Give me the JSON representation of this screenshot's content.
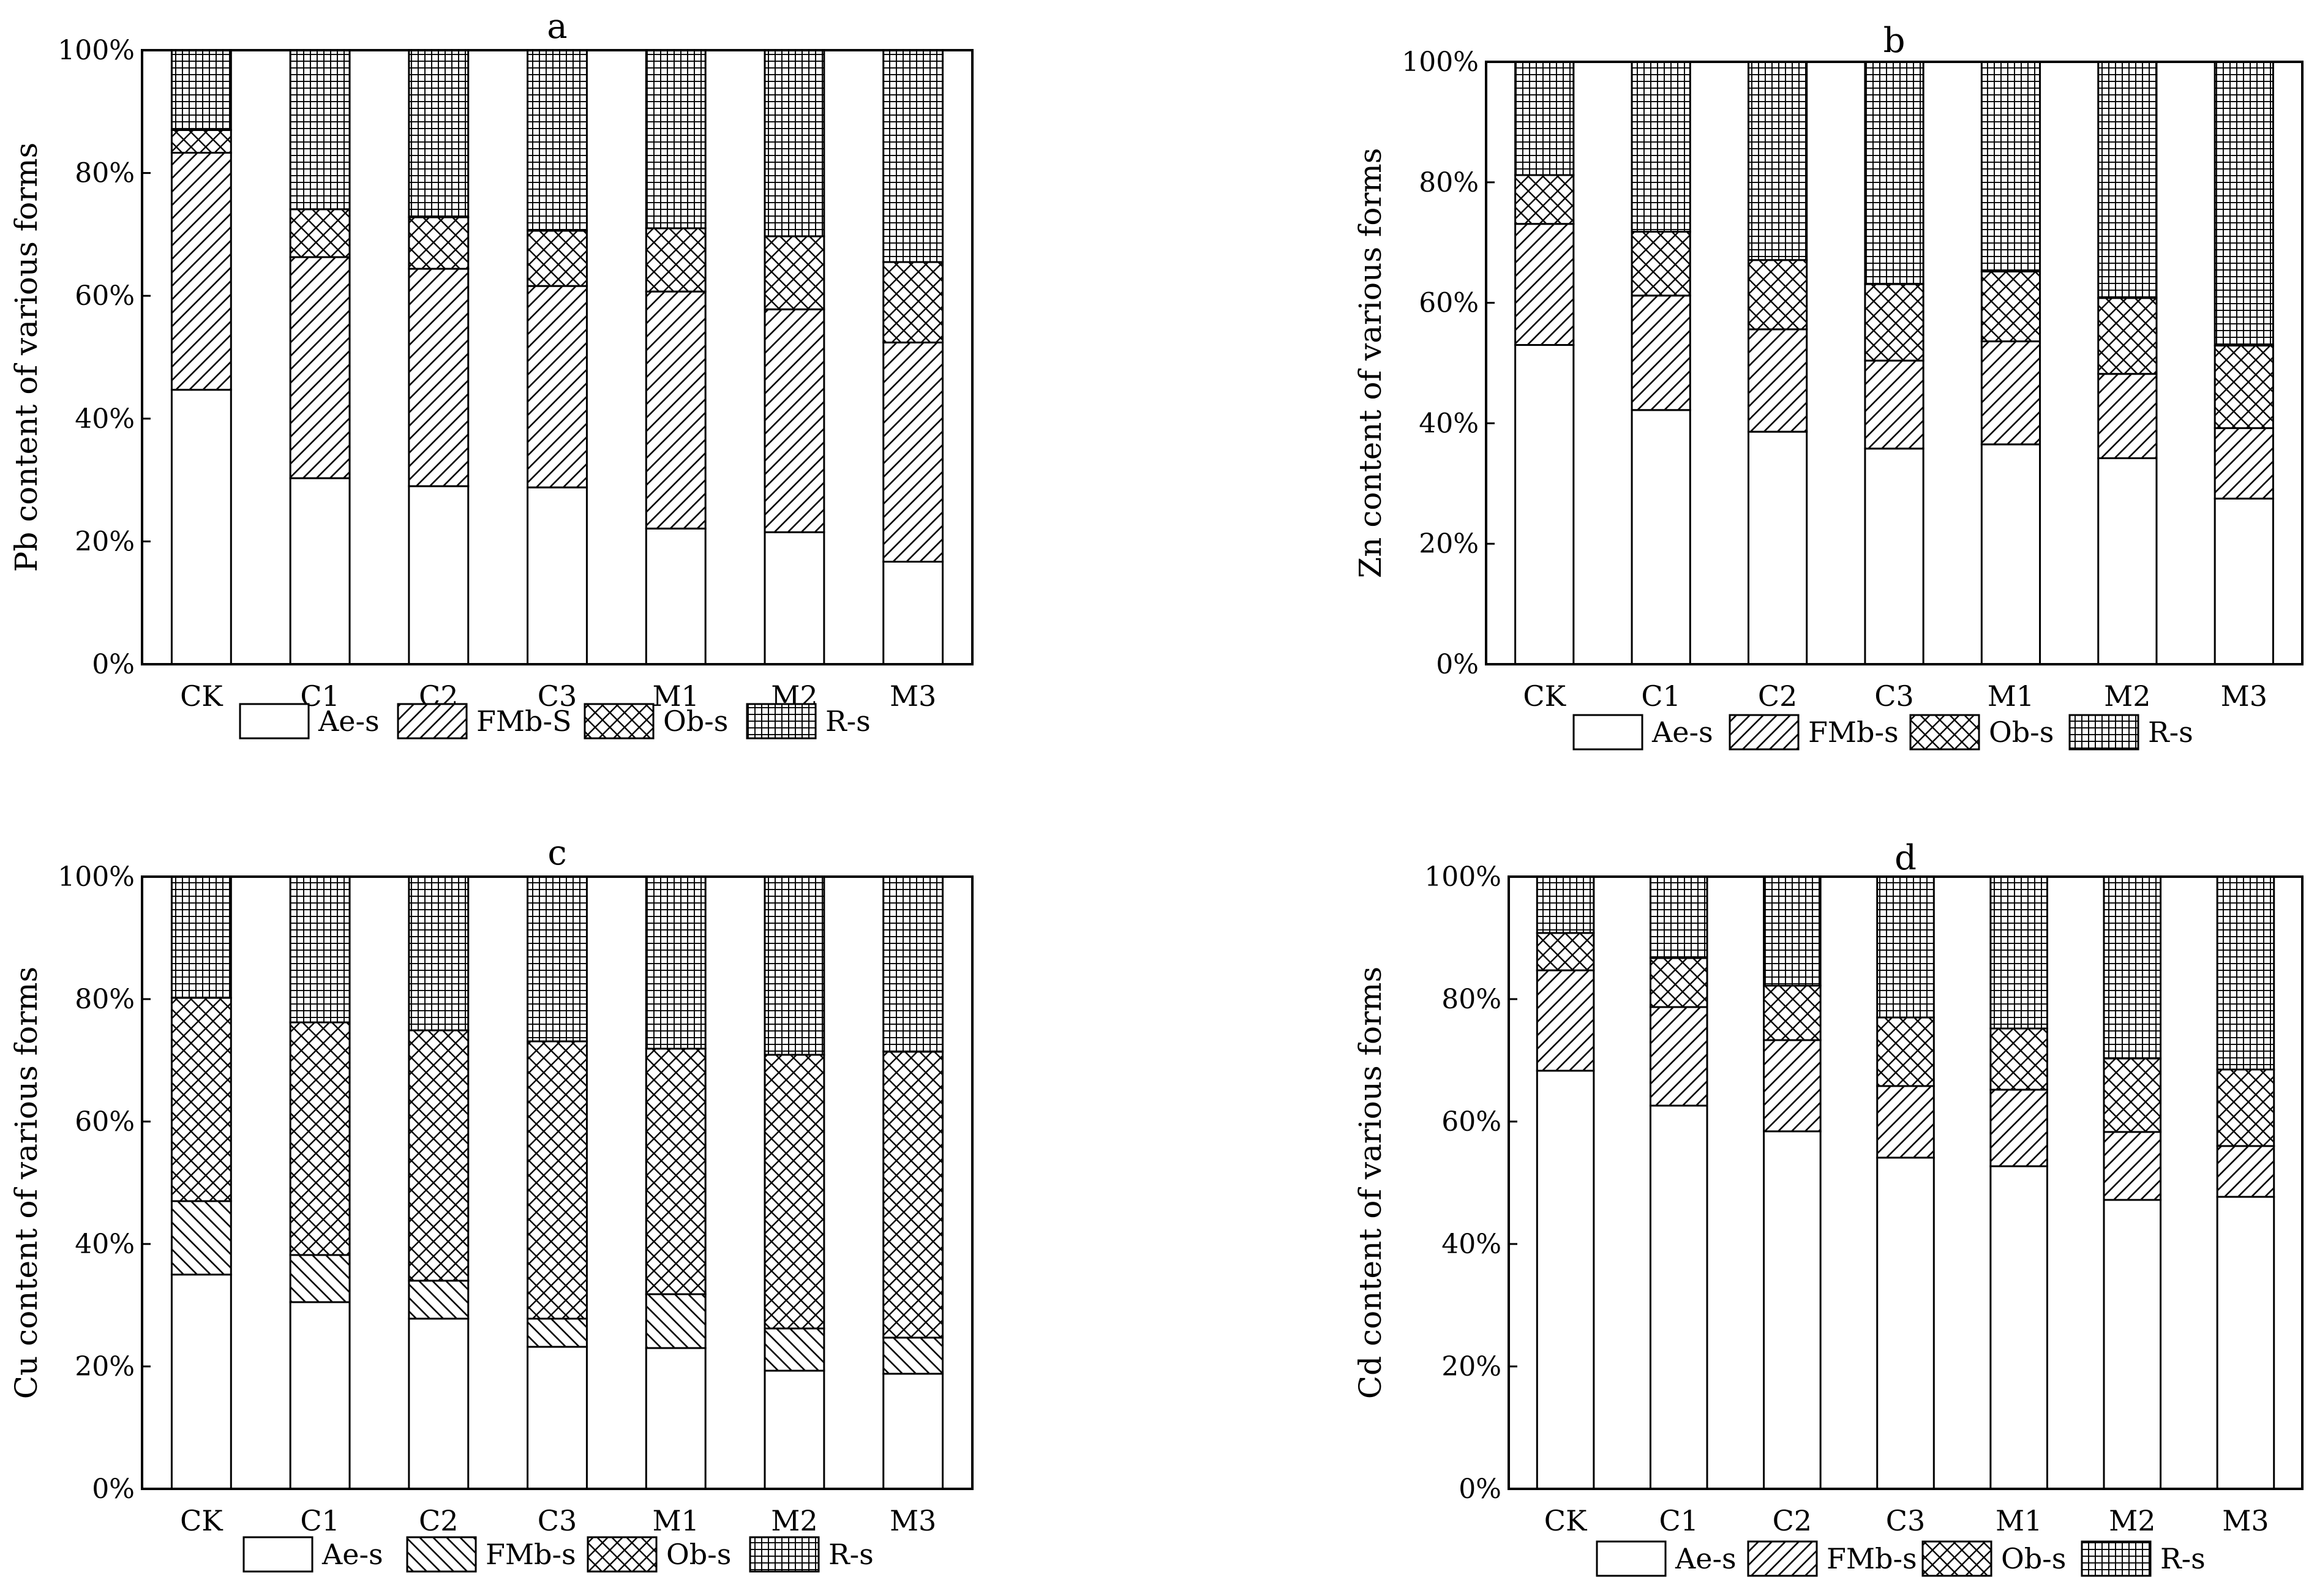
{
  "chart_data": [
    {
      "panel": "a",
      "type": "bar",
      "stacked": true,
      "title": "a",
      "ylabel": "Pb content of various forms",
      "xlabel": "",
      "ylim": [
        0,
        100
      ],
      "yticks": [
        "0%",
        "20%",
        "40%",
        "60%",
        "80%",
        "100%"
      ],
      "categories": [
        "CK",
        "C1",
        "C2",
        "C3",
        "M1",
        "M2",
        "M3"
      ],
      "legend": [
        "Ae-s",
        "FMb-S",
        "Ob-s",
        "R-s"
      ],
      "series": [
        {
          "name": "Ae-s",
          "values": [
            44.7,
            30.3,
            29.0,
            28.8,
            22.1,
            21.5,
            16.7
          ]
        },
        {
          "name": "FMb-S",
          "values": [
            38.6,
            36.0,
            35.4,
            32.8,
            38.6,
            36.3,
            35.7
          ]
        },
        {
          "name": "Ob-s",
          "values": [
            3.7,
            7.8,
            8.4,
            9.0,
            10.3,
            11.9,
            13.1
          ]
        },
        {
          "name": "R-s",
          "values": [
            13.0,
            25.9,
            27.2,
            29.4,
            29.0,
            30.3,
            34.5
          ]
        }
      ]
    },
    {
      "panel": "b",
      "type": "bar",
      "stacked": true,
      "title": "b",
      "ylabel": "Zn content of various forms",
      "xlabel": "",
      "ylim": [
        0,
        100
      ],
      "yticks": [
        "0%",
        "20%",
        "40%",
        "60%",
        "80%",
        "100%"
      ],
      "categories": [
        "CK",
        "C1",
        "C2",
        "C3",
        "M1",
        "M2",
        "M3"
      ],
      "legend": [
        "Ae-s",
        "FMb-s",
        "Ob-s",
        "R-s"
      ],
      "series": [
        {
          "name": "Ae-s",
          "values": [
            53.0,
            42.2,
            38.6,
            35.8,
            36.5,
            34.2,
            27.5
          ]
        },
        {
          "name": "FMb-s",
          "values": [
            20.1,
            19.0,
            17.0,
            14.6,
            17.1,
            14.0,
            11.7
          ]
        },
        {
          "name": "Ob-s",
          "values": [
            8.1,
            10.6,
            11.5,
            12.7,
            11.6,
            12.6,
            13.7
          ]
        },
        {
          "name": "R-s",
          "values": [
            18.8,
            28.2,
            32.9,
            36.9,
            34.8,
            39.2,
            47.1
          ]
        }
      ]
    },
    {
      "panel": "c",
      "type": "bar",
      "stacked": true,
      "title": "c",
      "ylabel": "Cu content of various forms",
      "xlabel": "",
      "ylim": [
        0,
        100
      ],
      "yticks": [
        "0%",
        "20%",
        "40%",
        "60%",
        "80%",
        "100%"
      ],
      "categories": [
        "CK",
        "C1",
        "C2",
        "C3",
        "M1",
        "M2",
        "M3"
      ],
      "legend": [
        "Ae-s",
        "FMb-s",
        "Ob-s",
        "R-s"
      ],
      "series": [
        {
          "name": "Ae-s",
          "values": [
            35.0,
            30.5,
            27.8,
            23.2,
            23.0,
            19.3,
            18.8
          ]
        },
        {
          "name": "FMb-s",
          "values": [
            12.0,
            7.7,
            6.2,
            4.6,
            8.8,
            6.9,
            5.9
          ]
        },
        {
          "name": "Ob-s",
          "values": [
            33.2,
            38.0,
            40.9,
            45.3,
            40.1,
            44.7,
            46.7
          ]
        },
        {
          "name": "R-s",
          "values": [
            19.8,
            23.8,
            25.1,
            26.9,
            28.1,
            29.1,
            28.6
          ]
        }
      ]
    },
    {
      "panel": "d",
      "type": "bar",
      "stacked": true,
      "title": "d",
      "ylabel": "Cd content of various forms",
      "xlabel": "",
      "ylim": [
        0,
        100
      ],
      "yticks": [
        "0%",
        "20%",
        "40%",
        "60%",
        "80%",
        "100%"
      ],
      "categories": [
        "CK",
        "C1",
        "C2",
        "C3",
        "M1",
        "M2",
        "M3"
      ],
      "legend": [
        "Ae-s",
        "FMb-s",
        "Ob-s",
        "R-s"
      ],
      "series": [
        {
          "name": "Ae-s",
          "values": [
            68.3,
            62.6,
            58.4,
            54.1,
            52.7,
            47.2,
            47.7
          ]
        },
        {
          "name": "FMb-s",
          "values": [
            16.4,
            16.1,
            14.9,
            11.7,
            12.5,
            11.1,
            8.3
          ]
        },
        {
          "name": "Ob-s",
          "values": [
            6.1,
            8.0,
            8.9,
            11.2,
            10.0,
            12.0,
            12.5
          ]
        },
        {
          "name": "R-s",
          "values": [
            9.2,
            13.3,
            17.8,
            23.0,
            24.8,
            29.7,
            31.5
          ]
        }
      ]
    }
  ]
}
